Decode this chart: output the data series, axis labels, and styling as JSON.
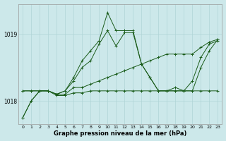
{
  "title": "Graphe pression niveau de la mer (hPa)",
  "background_color": "#cce8ea",
  "line_color": "#1a5c1a",
  "grid_color": "#b0d4d6",
  "xlim": [
    -0.5,
    23.5
  ],
  "ylim": [
    1017.65,
    1019.45
  ],
  "yticks": [
    1018,
    1019
  ],
  "xticks": [
    0,
    1,
    2,
    3,
    4,
    5,
    6,
    7,
    8,
    9,
    10,
    11,
    12,
    13,
    14,
    15,
    16,
    17,
    18,
    19,
    20,
    21,
    22,
    23
  ],
  "lines": [
    {
      "x": [
        0,
        1,
        2,
        3,
        4,
        5,
        6,
        7,
        8,
        9,
        10,
        11,
        12,
        13,
        14,
        15,
        16,
        17,
        18,
        19,
        20,
        21,
        22,
        23
      ],
      "y": [
        1017.75,
        1018.0,
        1018.15,
        1018.15,
        1018.1,
        1018.15,
        1018.35,
        1018.6,
        1018.75,
        1018.9,
        1019.32,
        1019.05,
        1019.05,
        1019.05,
        1018.55,
        1018.35,
        1018.15,
        1018.15,
        1018.15,
        1018.15,
        1018.3,
        1018.65,
        1018.85,
        1018.9
      ]
    },
    {
      "x": [
        0,
        1,
        2,
        3,
        4,
        5,
        6,
        7,
        8,
        9,
        10,
        11,
        12,
        13,
        14,
        15,
        16,
        17,
        18,
        19,
        20,
        21,
        22,
        23
      ],
      "y": [
        1018.15,
        1018.15,
        1018.15,
        1018.15,
        1018.1,
        1018.1,
        1018.2,
        1018.2,
        1018.25,
        1018.3,
        1018.35,
        1018.4,
        1018.45,
        1018.5,
        1018.55,
        1018.6,
        1018.65,
        1018.7,
        1018.7,
        1018.7,
        1018.7,
        1018.8,
        1018.88,
        1018.92
      ]
    },
    {
      "x": [
        0,
        1,
        2,
        3,
        4,
        5,
        6,
        7,
        8,
        9,
        10,
        11,
        12,
        13,
        14,
        15,
        16,
        17,
        18,
        19,
        20,
        21,
        22,
        23
      ],
      "y": [
        1017.75,
        1018.0,
        1018.15,
        1018.15,
        1018.1,
        1018.15,
        1018.3,
        1018.5,
        1018.6,
        1018.85,
        1019.05,
        1018.82,
        1019.02,
        1019.02,
        1018.55,
        1018.35,
        1018.15,
        1018.15,
        1018.2,
        1018.15,
        1018.15,
        1018.5,
        1018.75,
        1018.92
      ]
    },
    {
      "x": [
        0,
        1,
        2,
        3,
        4,
        5,
        6,
        7,
        8,
        9,
        10,
        11,
        12,
        13,
        14,
        15,
        16,
        17,
        18,
        19,
        20,
        21,
        22,
        23
      ],
      "y": [
        1018.15,
        1018.15,
        1018.15,
        1018.15,
        1018.08,
        1018.08,
        1018.12,
        1018.12,
        1018.15,
        1018.15,
        1018.15,
        1018.15,
        1018.15,
        1018.15,
        1018.15,
        1018.15,
        1018.15,
        1018.15,
        1018.15,
        1018.15,
        1018.15,
        1018.15,
        1018.15,
        1018.15
      ]
    }
  ]
}
